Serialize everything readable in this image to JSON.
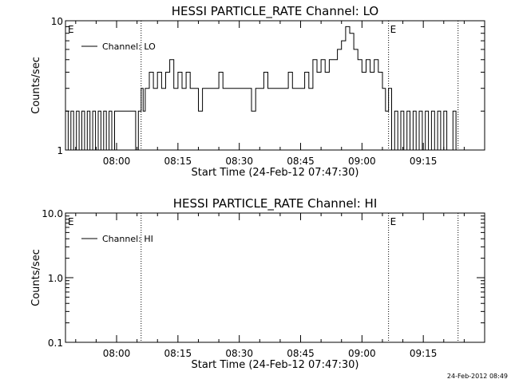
{
  "footer": {
    "timestamp": "24-Feb-2012 08:49"
  },
  "chart_data": [
    {
      "type": "line",
      "title": "HESSI PARTICLE_RATE Channel: LO",
      "xlabel": "Start Time (24-Feb-12 07:47:30)",
      "ylabel": "Counts/sec",
      "yscale": "log",
      "ylim": [
        1,
        10
      ],
      "yticks": [
        "1",
        "10"
      ],
      "xlim": [
        "07:47:30",
        "09:30:00"
      ],
      "xticks": [
        "08:00",
        "08:15",
        "08:30",
        "08:45",
        "09:00",
        "09:15"
      ],
      "grid": false,
      "legend_position": "top-left",
      "event_lines": [
        "08:06:00",
        "09:06:30",
        "09:23:30"
      ],
      "event_marks": [
        "E",
        "E"
      ],
      "series": [
        {
          "name": "Channel: LO",
          "x": [
            "07:47:30",
            "07:48:10",
            "07:48:50",
            "07:49:30",
            "07:50:10",
            "07:50:50",
            "07:51:30",
            "07:52:10",
            "07:52:50",
            "07:53:30",
            "07:54:10",
            "07:54:50",
            "07:55:30",
            "07:56:10",
            "07:56:50",
            "07:57:30",
            "07:58:10",
            "07:58:50",
            "07:59:30",
            "08:00:00",
            "08:02:00",
            "08:04:00",
            "08:04:40",
            "08:05:20",
            "08:06:00",
            "08:06:30",
            "08:07:00",
            "08:08:00",
            "08:09:00",
            "08:10:00",
            "08:11:00",
            "08:12:00",
            "08:13:00",
            "08:14:00",
            "08:15:00",
            "08:16:00",
            "08:17:00",
            "08:18:00",
            "08:19:00",
            "08:20:00",
            "08:21:00",
            "08:22:00",
            "08:23:00",
            "08:24:00",
            "08:25:00",
            "08:26:00",
            "08:27:00",
            "08:28:00",
            "08:29:00",
            "08:30:00",
            "08:31:00",
            "08:32:00",
            "08:33:00",
            "08:34:00",
            "08:35:00",
            "08:36:00",
            "08:37:00",
            "08:38:00",
            "08:39:00",
            "08:40:00",
            "08:41:00",
            "08:42:00",
            "08:43:00",
            "08:44:00",
            "08:45:00",
            "08:46:00",
            "08:47:00",
            "08:48:00",
            "08:49:00",
            "08:50:00",
            "08:51:00",
            "08:52:00",
            "08:53:00",
            "08:54:00",
            "08:55:00",
            "08:56:00",
            "08:57:00",
            "08:58:00",
            "08:59:00",
            "09:00:00",
            "09:01:00",
            "09:02:00",
            "09:03:00",
            "09:04:00",
            "09:05:00",
            "09:05:45",
            "09:06:30",
            "09:07:15",
            "09:08:00",
            "09:08:45",
            "09:09:30",
            "09:10:15",
            "09:11:00",
            "09:11:45",
            "09:12:30",
            "09:13:15",
            "09:14:00",
            "09:14:45",
            "09:15:30",
            "09:16:15",
            "09:17:00",
            "09:17:45",
            "09:18:30",
            "09:19:15",
            "09:20:00",
            "09:20:45",
            "09:21:30",
            "09:22:15",
            "09:23:00"
          ],
          "y": [
            2,
            1,
            2,
            1,
            2,
            1,
            2,
            1,
            2,
            1,
            2,
            1,
            2,
            1,
            2,
            1,
            2,
            1,
            2,
            2,
            2,
            2,
            1,
            2,
            3,
            2,
            3,
            4,
            3,
            4,
            3,
            4,
            5,
            3,
            4,
            3,
            4,
            3,
            3,
            2,
            3,
            3,
            3,
            3,
            4,
            3,
            3,
            3,
            3,
            3,
            3,
            3,
            2,
            3,
            3,
            4,
            3,
            3,
            3,
            3,
            3,
            4,
            3,
            3,
            3,
            4,
            3,
            5,
            4,
            5,
            4,
            5,
            5,
            6,
            7,
            9,
            8,
            6,
            5,
            4,
            5,
            4,
            5,
            4,
            3,
            2,
            3,
            1,
            2,
            1,
            2,
            1,
            2,
            1,
            2,
            1,
            2,
            1,
            2,
            1,
            2,
            1,
            2,
            1,
            2,
            1,
            1,
            2,
            1
          ]
        }
      ]
    },
    {
      "type": "line",
      "title": "HESSI PARTICLE_RATE Channel: HI",
      "xlabel": "Start Time (24-Feb-12 07:47:30)",
      "ylabel": "Counts/sec",
      "yscale": "log",
      "ylim": [
        0.1,
        10
      ],
      "yticks": [
        "0.1",
        "1.0",
        "10.0"
      ],
      "xlim": [
        "07:47:30",
        "09:30:00"
      ],
      "xticks": [
        "08:00",
        "08:15",
        "08:30",
        "08:45",
        "09:00",
        "09:15"
      ],
      "grid": false,
      "legend_position": "top-left",
      "event_lines": [
        "08:06:00",
        "09:06:30",
        "09:23:30"
      ],
      "event_marks": [
        "E",
        "E"
      ],
      "series": [
        {
          "name": "Channel: HI",
          "x": [],
          "y": []
        }
      ]
    }
  ]
}
